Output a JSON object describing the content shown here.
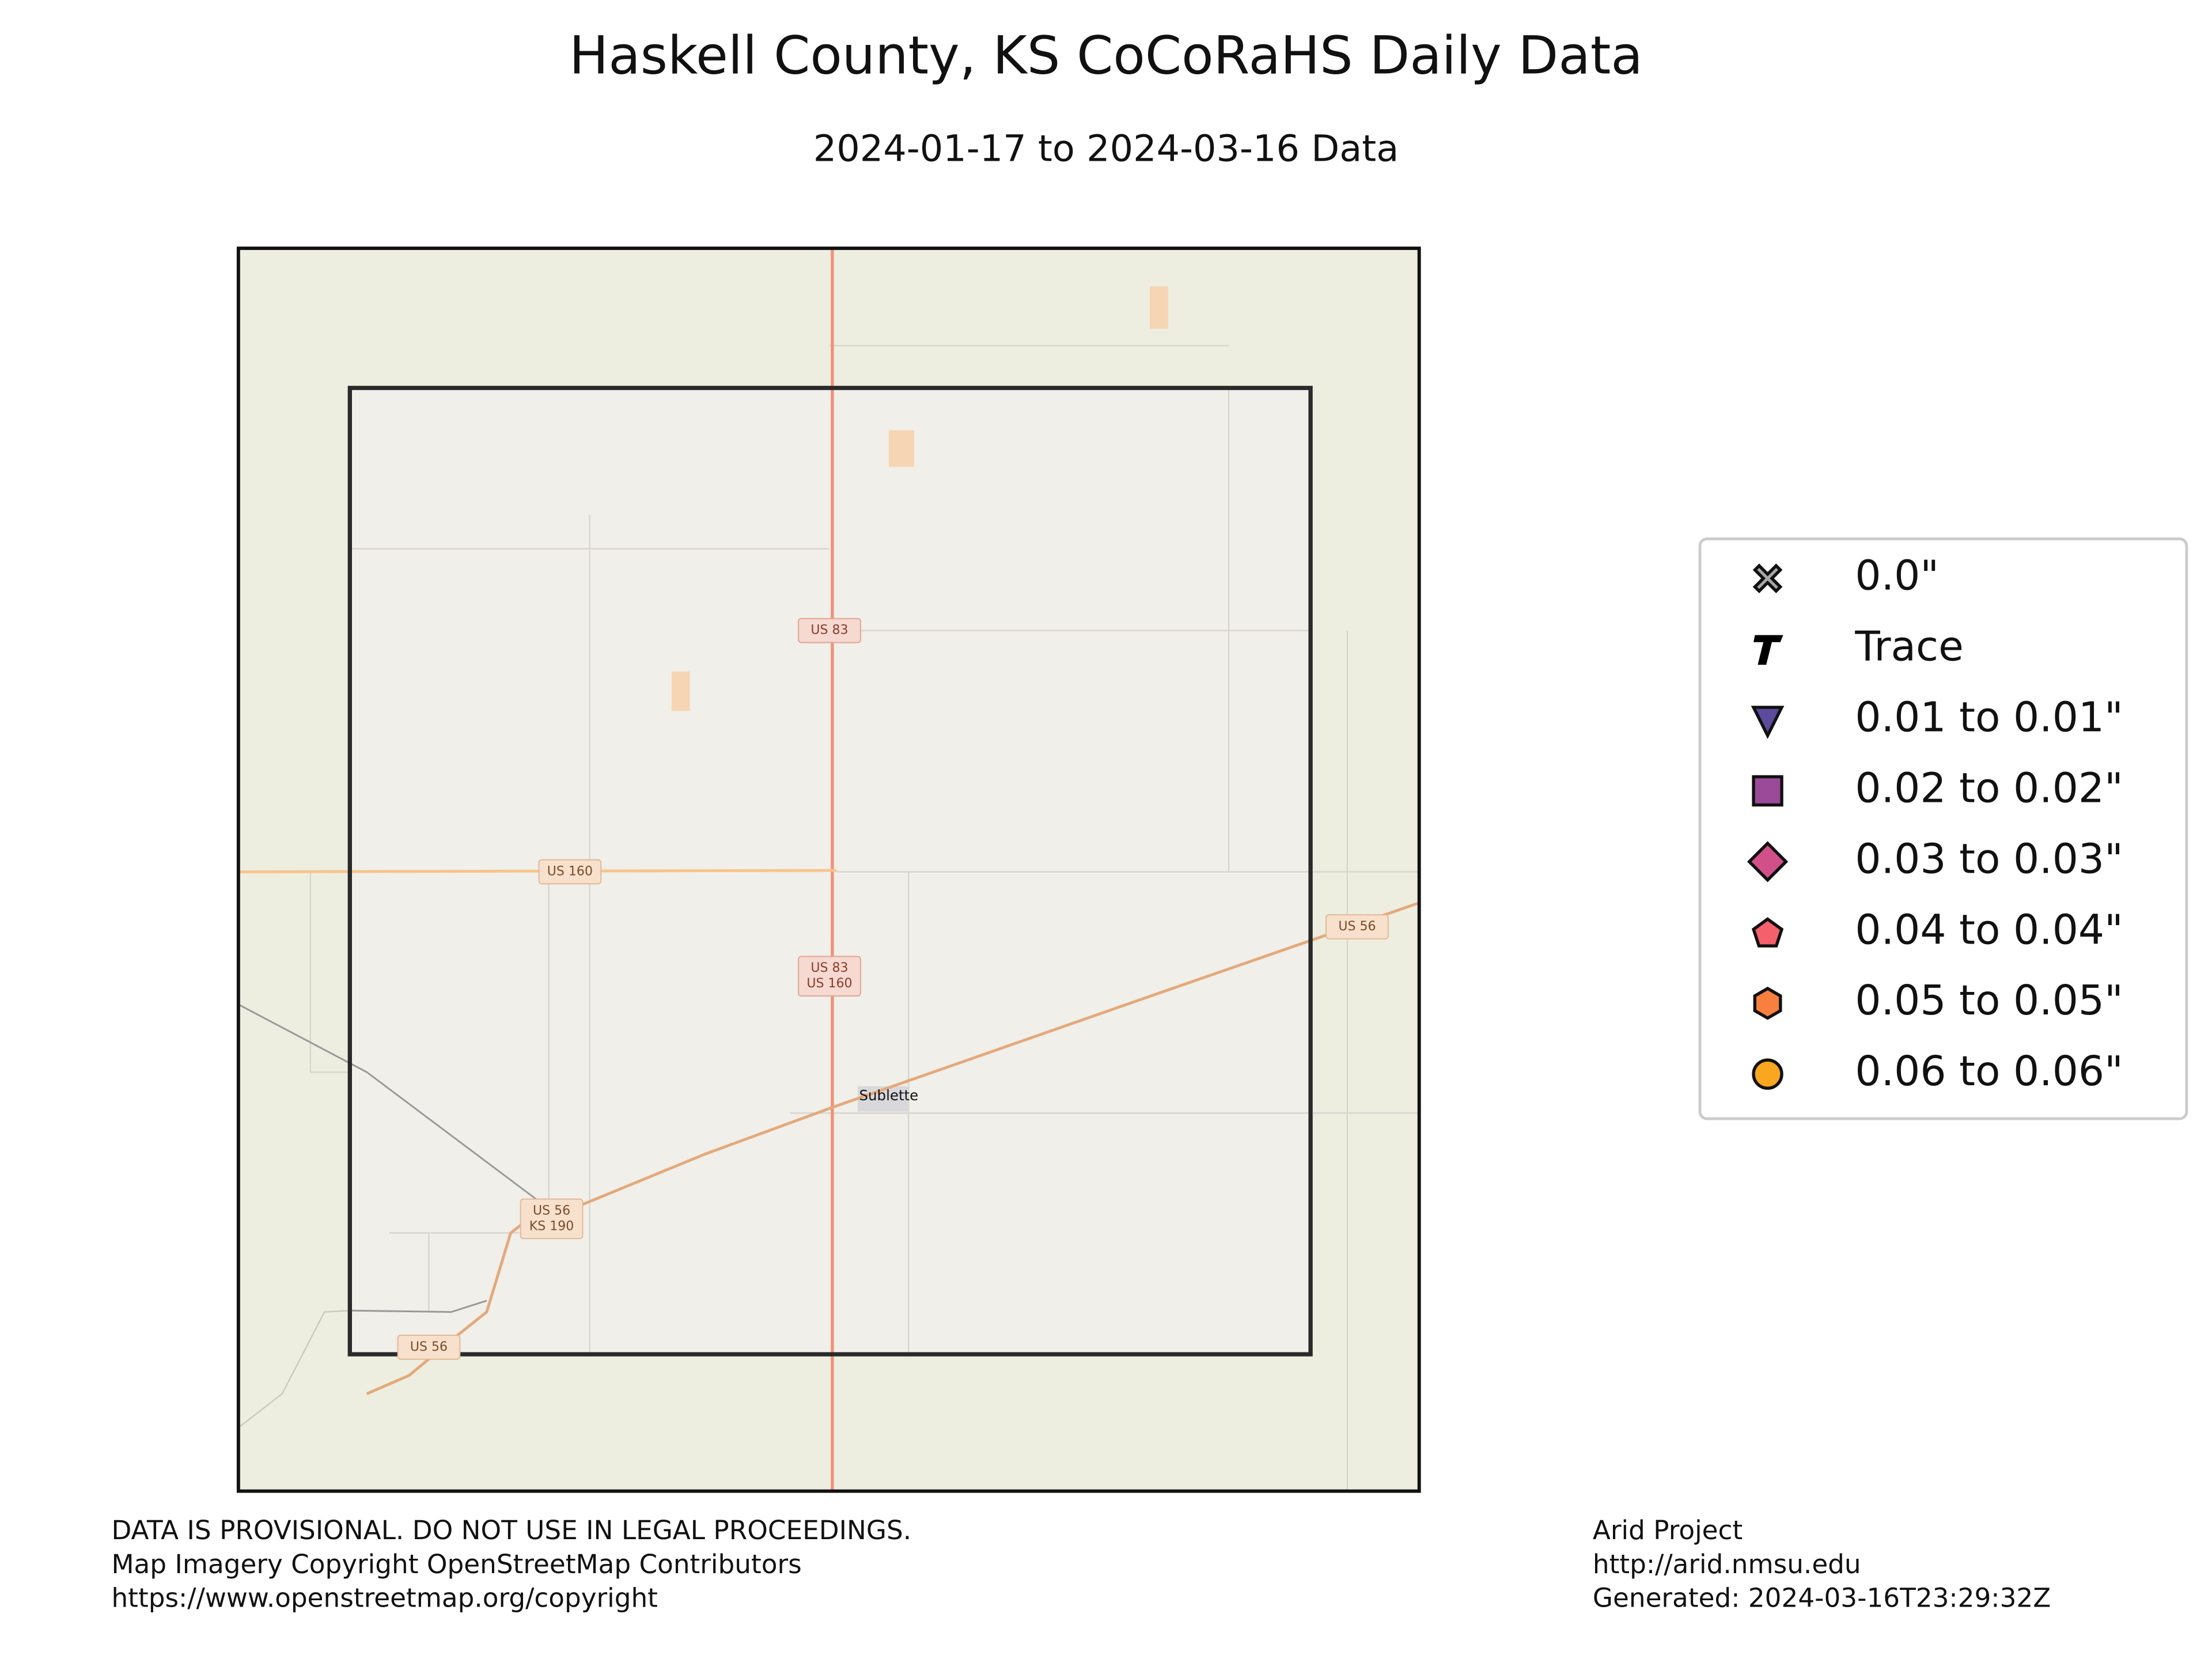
{
  "title": "Haskell County, KS CoCoRaHS Daily Data",
  "subtitle": "2024-01-17 to 2024-03-16 Data",
  "legend": [
    {
      "label": "0.0\"",
      "marker": "x",
      "color": "#a8a8a8"
    },
    {
      "label": "Trace",
      "marker": "T",
      "color": "#000000"
    },
    {
      "label": "0.01 to 0.01\"",
      "marker": "triangle-down",
      "color": "#5c4a9c"
    },
    {
      "label": "0.02 to 0.02\"",
      "marker": "square",
      "color": "#9a4a98"
    },
    {
      "label": "0.03 to 0.03\"",
      "marker": "diamond",
      "color": "#d2508a"
    },
    {
      "label": "0.04 to 0.04\"",
      "marker": "pentagon",
      "color": "#f4606c"
    },
    {
      "label": "0.05 to 0.05\"",
      "marker": "hexagon",
      "color": "#f7803f"
    },
    {
      "label": "0.06 to 0.06\"",
      "marker": "circle",
      "color": "#f9a620"
    }
  ],
  "map_labels": {
    "us83_north": [
      "US 83"
    ],
    "us160_west": [
      "US 160"
    ],
    "us83_us160": [
      "US 83",
      "US 160"
    ],
    "us56_east": [
      "US 56"
    ],
    "us56_ks190": [
      "US 56",
      "KS 190"
    ],
    "us56_south": [
      "US 56"
    ],
    "town": "Sublette"
  },
  "footer_left": [
    "DATA IS PROVISIONAL. DO NOT USE IN LEGAL PROCEEDINGS.",
    "Map Imagery Copyright OpenStreetMap Contributors",
    "https://www.openstreetmap.org/copyright"
  ],
  "footer_right": [
    "Arid Project",
    "http://arid.nmsu.edu",
    "Generated: 2024-03-16T23:29:32Z"
  ]
}
